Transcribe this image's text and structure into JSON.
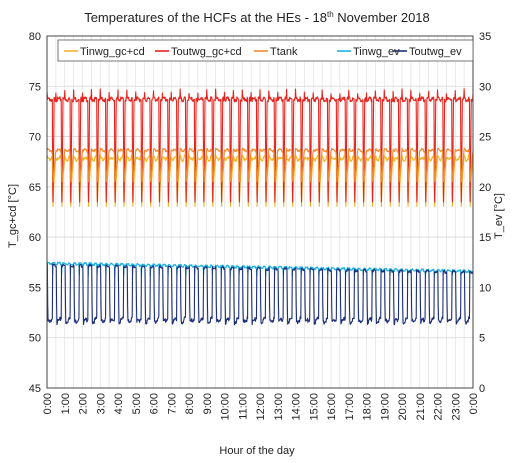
{
  "chart_data": {
    "type": "line",
    "title": "Temperatures of the HCFs at the HEs - 18",
    "title_sup": "th",
    "title_tail": " November 2018",
    "xlabel": "Hour of the day",
    "ylabel_left": "T_gc+cd [°C]",
    "ylabel_right": "T_ev [°C]",
    "ylim_left": [
      45,
      80
    ],
    "ylim_right": [
      0,
      35
    ],
    "yticks_left": [
      45,
      50,
      55,
      60,
      65,
      70,
      75,
      80
    ],
    "yticks_right": [
      0,
      5,
      10,
      15,
      20,
      25,
      30,
      35
    ],
    "xlim_hours": [
      0,
      24
    ],
    "x_tick_labels": [
      "0:00",
      "1:00",
      "2:00",
      "3:00",
      "4:00",
      "5:00",
      "6:00",
      "7:00",
      "8:00",
      "9:00",
      "10:00",
      "11:00",
      "12:00",
      "13:00",
      "14:00",
      "15:00",
      "16:00",
      "17:00",
      "18:00",
      "19:00",
      "20:00",
      "21:00",
      "22:00",
      "23:00",
      "0:00"
    ],
    "grid": true,
    "legend_position": "top",
    "cycle_hours": 0.5,
    "series": [
      {
        "name": "Tinwg_gc+cd",
        "axis": "left",
        "color": "#f2b227",
        "high": 68.0,
        "low": 62.0,
        "profile": "sawtooth"
      },
      {
        "name": "Toutwg_gc+cd",
        "axis": "left",
        "color": "#e8231d",
        "high": 73.7,
        "low": 62.0,
        "profile": "pulse"
      },
      {
        "name": "Ttank",
        "axis": "left",
        "color": "#f08a2c",
        "high": 68.7,
        "low": 65.5,
        "profile": "smooth"
      },
      {
        "name": "Tinwg_ev",
        "axis": "right",
        "color": "#1eb2e0",
        "high_start": 12.4,
        "high_end": 11.6,
        "low": 11.2,
        "profile": "flat"
      },
      {
        "name": "Toutwg_ev",
        "axis": "right",
        "color": "#1c2f78",
        "high_start": 12.2,
        "high_end": 11.5,
        "low": 6.5,
        "profile": "pulse_down"
      }
    ]
  }
}
